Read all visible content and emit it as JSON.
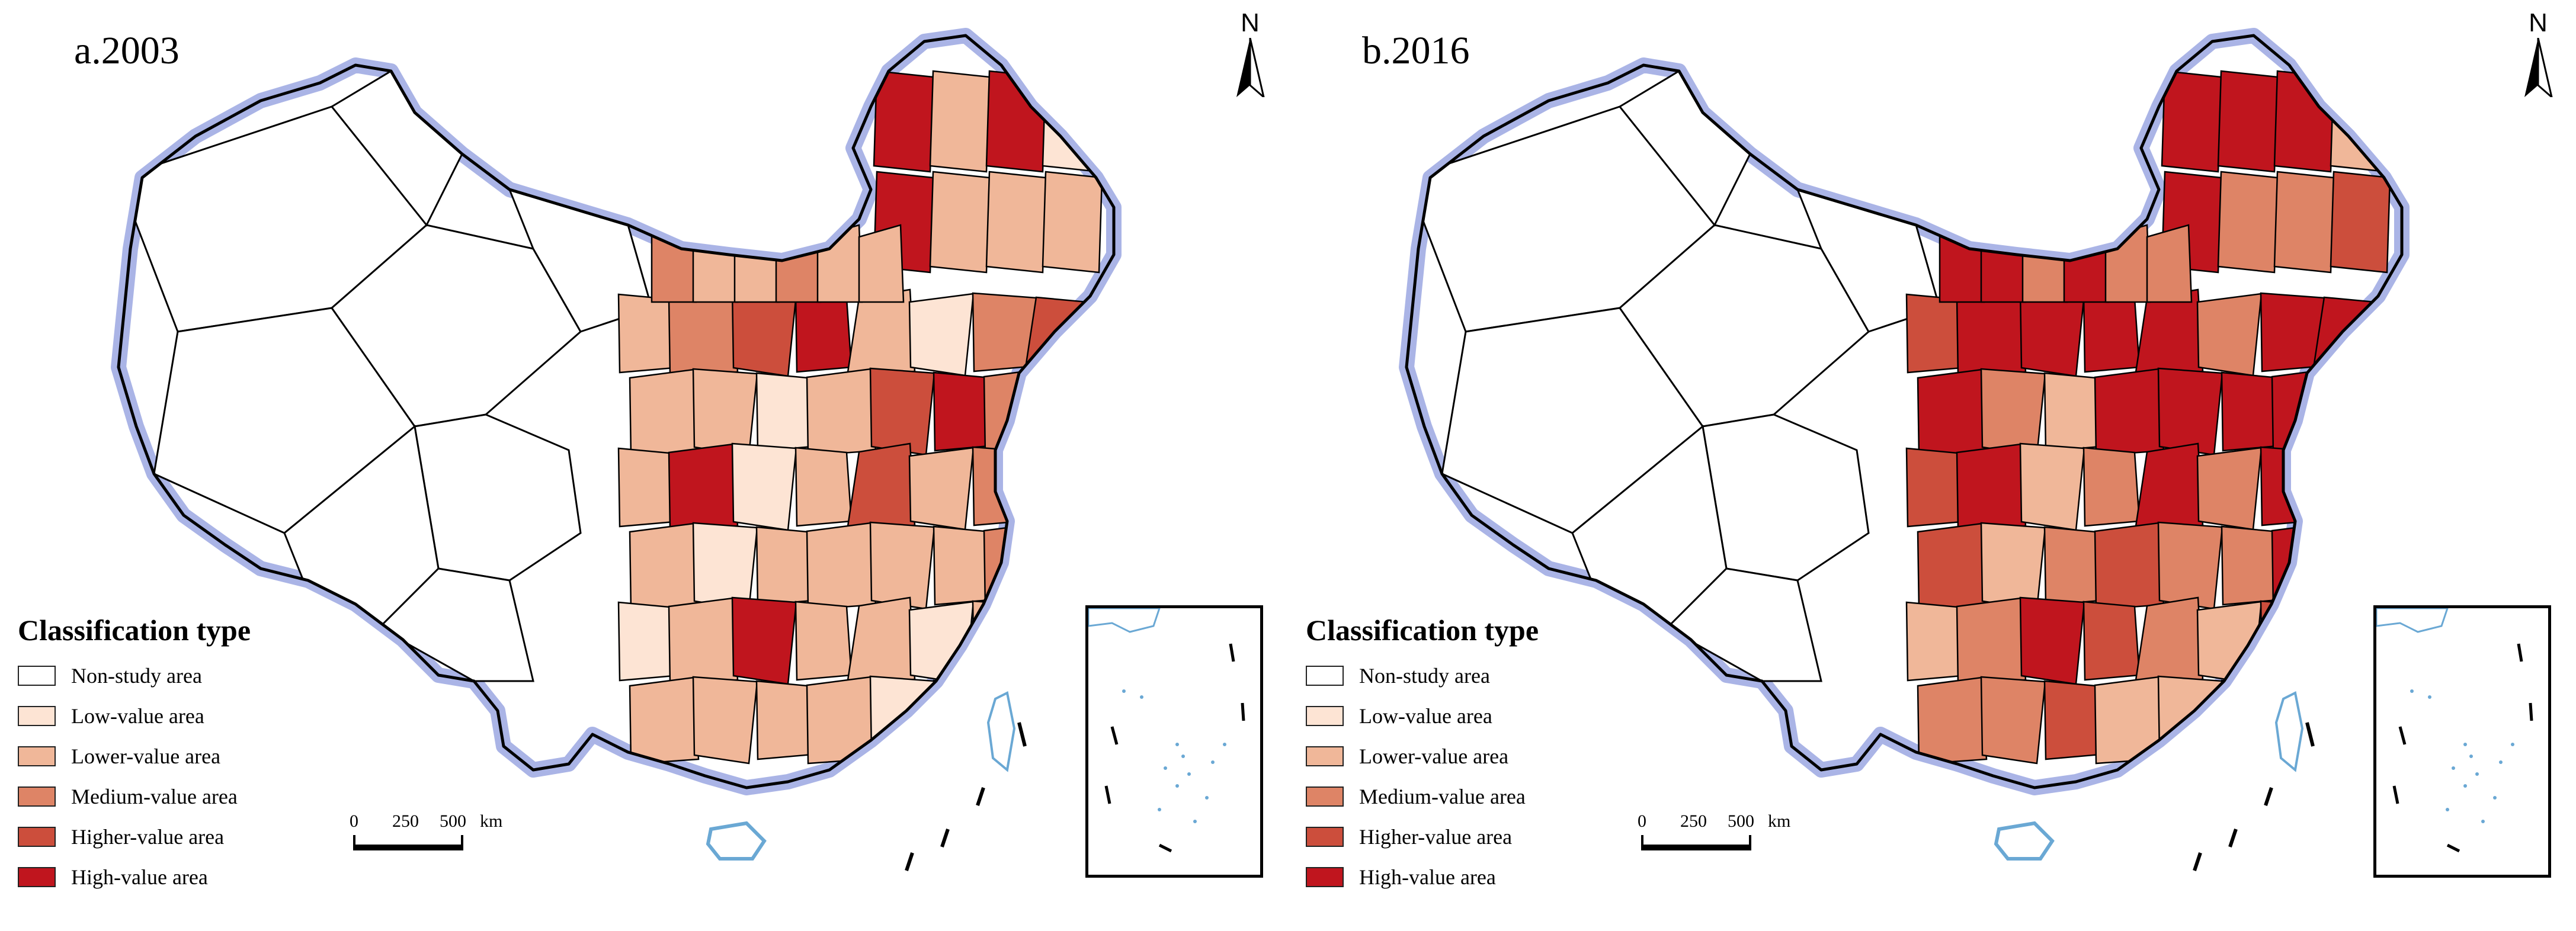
{
  "panels": [
    {
      "id": "a",
      "title": "a.2003",
      "north_label": "N",
      "region_classes": [
        "lower",
        "medium",
        "higher",
        "high",
        "lower",
        "low",
        "medium",
        "higher",
        "lower",
        "lower",
        "low",
        "lower",
        "higher",
        "high",
        "medium",
        "lower",
        "lower",
        "high",
        "low",
        "lower",
        "higher",
        "lower",
        "medium",
        "high",
        "lower",
        "low",
        "lower",
        "lower",
        "lower",
        "lower",
        "medium",
        "lower",
        "low",
        "lower",
        "high",
        "lower",
        "lower",
        "low",
        "lower",
        "medium",
        "lower",
        "lower",
        "lower",
        "lower",
        "low",
        "lower",
        "lower",
        "lower"
      ],
      "legend_title": "Classification type",
      "scale_labels": [
        "0",
        "250",
        "500",
        "km"
      ]
    },
    {
      "id": "b",
      "title": "b.2016",
      "north_label": "N",
      "region_classes": [
        "higher",
        "high",
        "high",
        "high",
        "high",
        "medium",
        "high",
        "high",
        "high",
        "medium",
        "lower",
        "high",
        "high",
        "high",
        "high",
        "medium",
        "higher",
        "high",
        "lower",
        "medium",
        "high",
        "medium",
        "high",
        "high",
        "higher",
        "lower",
        "medium",
        "higher",
        "medium",
        "medium",
        "high",
        "medium",
        "lower",
        "medium",
        "high",
        "higher",
        "medium",
        "lower",
        "higher",
        "high",
        "medium",
        "medium",
        "higher",
        "lower",
        "lower",
        "higher",
        "higher",
        "medium"
      ],
      "legend_title": "Classification type",
      "scale_labels": [
        "0",
        "250",
        "500",
        "km"
      ]
    }
  ],
  "legend": [
    {
      "key": "nonstudy",
      "label": "Non-study area",
      "color": "#ffffff"
    },
    {
      "key": "low",
      "label": "Low-value area",
      "color": "#fde4d4"
    },
    {
      "key": "lower",
      "label": "Lower-value area",
      "color": "#f0b799"
    },
    {
      "key": "medium",
      "label": "Medium-value area",
      "color": "#de8466"
    },
    {
      "key": "higher",
      "label": "Higher-value area",
      "color": "#cc4e3c"
    },
    {
      "key": "high",
      "label": "High-value area",
      "color": "#c0151e"
    }
  ],
  "colors": {
    "boundary": "#000000",
    "coast_glow": "#aab4e6",
    "islands": "#6aa8d4"
  }
}
